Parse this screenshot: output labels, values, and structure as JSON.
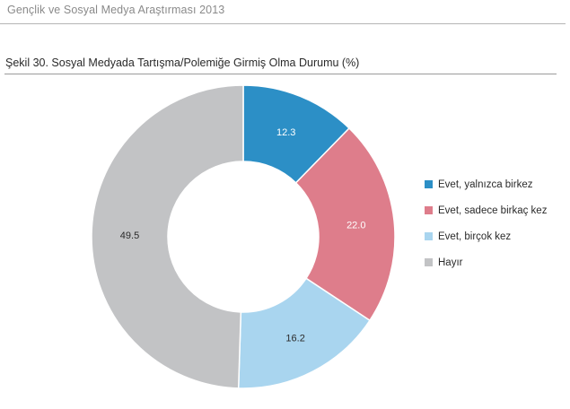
{
  "header": {
    "title": "Gençlik ve Sosyal Medya Araştırması 2013"
  },
  "chart_data": {
    "type": "pie",
    "variant": "donut",
    "title": "Şekil 30. Sosyal Medyada Tartışma/Polemiğe Girmiş Olma Durumu (%)",
    "start_angle_deg": 0,
    "direction": "clockwise",
    "legend_position": "right",
    "slices": [
      {
        "label": "Evet, yalnızca birkez",
        "value": 12.3,
        "value_label": "12.3",
        "color": "#2c8fc6",
        "label_color": "#ffffff"
      },
      {
        "label": "Evet, sadece birkaç kez",
        "value": 22.0,
        "value_label": "22.0",
        "color": "#de7d8b",
        "label_color": "#ffffff"
      },
      {
        "label": "Evet, birçok kez",
        "value": 16.2,
        "value_label": "16.2",
        "color": "#a9d5ef",
        "label_color": "#2a2a2a"
      },
      {
        "label": "Hayır",
        "value": 49.5,
        "value_label": "49.5",
        "color": "#c2c3c5",
        "label_color": "#2a2a2a"
      }
    ]
  }
}
